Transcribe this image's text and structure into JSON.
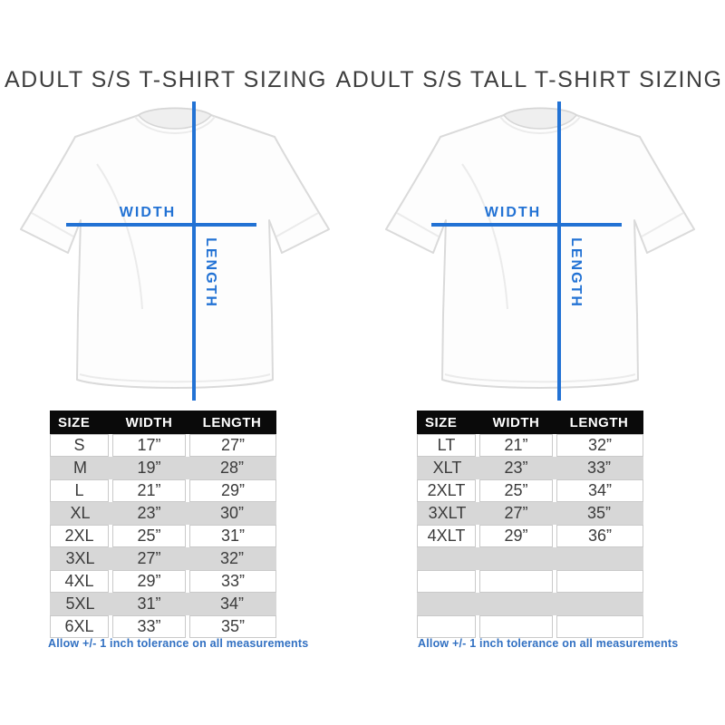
{
  "colors": {
    "accent_blue": "#2272d4",
    "footnote_blue": "#3170c2",
    "row_gray": "#d7d7d7",
    "header_bg": "#0a0a0a",
    "header_text": "#ffffff",
    "cell_text": "#3b3b3b",
    "title_text": "#3e3e3e",
    "cell_border": "#c9c9c9"
  },
  "panels": [
    {
      "title": "ADULT S/S T-SHIRT SIZING",
      "shirt": {
        "width_label": "WIDTH",
        "length_label": "LENGTH"
      },
      "table": {
        "headers": [
          "SIZE",
          "WIDTH",
          "LENGTH"
        ],
        "rows": [
          [
            "S",
            "17”",
            "27”"
          ],
          [
            "M",
            "19”",
            "28”"
          ],
          [
            "L",
            "21”",
            "29”"
          ],
          [
            "XL",
            "23”",
            "30”"
          ],
          [
            "2XL",
            "25”",
            "31”"
          ],
          [
            "3XL",
            "27”",
            "32”"
          ],
          [
            "4XL",
            "29”",
            "33”"
          ],
          [
            "5XL",
            "31”",
            "34”"
          ],
          [
            "6XL",
            "33”",
            "35”"
          ]
        ]
      },
      "footnote": "Allow +/- 1 inch tolerance on all measurements"
    },
    {
      "title": "ADULT S/S TALL T-SHIRT SIZING",
      "shirt": {
        "width_label": "WIDTH",
        "length_label": "LENGTH"
      },
      "table": {
        "headers": [
          "SIZE",
          "WIDTH",
          "LENGTH"
        ],
        "rows": [
          [
            "LT",
            "21”",
            "32”"
          ],
          [
            "XLT",
            "23”",
            "33”"
          ],
          [
            "2XLT",
            "25”",
            "34”"
          ],
          [
            "3XLT",
            "27”",
            "35”"
          ],
          [
            "4XLT",
            "29”",
            "36”"
          ],
          [
            "",
            "",
            ""
          ],
          [
            "",
            "",
            ""
          ],
          [
            "",
            "",
            ""
          ],
          [
            "",
            "",
            ""
          ]
        ]
      },
      "footnote": "Allow +/- 1 inch tolerance on all measurements"
    }
  ]
}
